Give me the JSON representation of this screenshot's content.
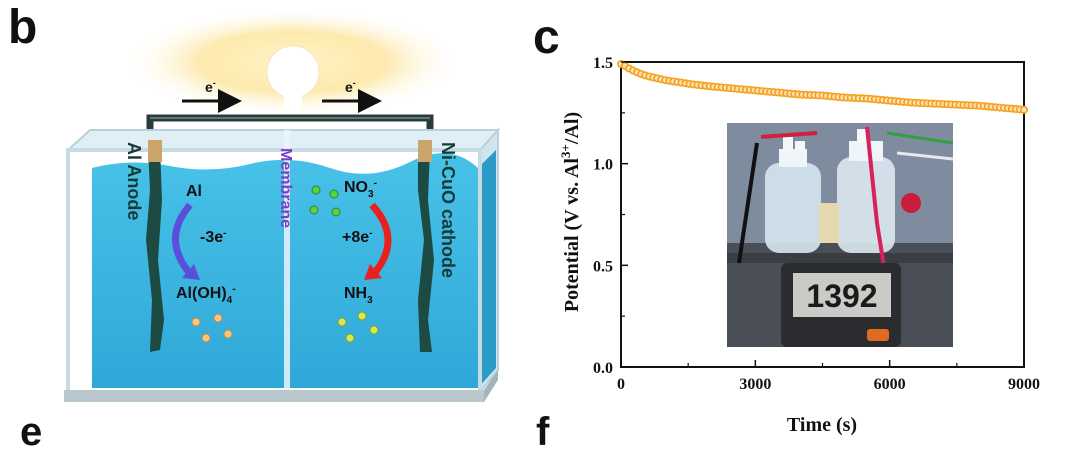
{
  "panel_b": {
    "letter": "b",
    "electron_left": "e",
    "electron_right": "e",
    "electron_sup": "-",
    "anode_label": "Al Anode",
    "membrane_label": "Membrane",
    "cathode_label": "Ni-CuO cathode",
    "anode_reactant": "Al",
    "anode_electrons": "-3e",
    "anode_electrons_sup": "-",
    "anode_product_main": "Al(OH)",
    "anode_product_sub": "4",
    "anode_product_sup": "-",
    "cathode_reactant_main": "NO",
    "cathode_reactant_sub": "3",
    "cathode_reactant_sup": "-",
    "cathode_electrons": "+8e",
    "cathode_electrons_sup": "-",
    "cathode_product_main": "NH",
    "cathode_product_sub": "3"
  },
  "panel_c": {
    "letter": "c"
  },
  "inset": {
    "meter_reading": "1392"
  },
  "partial_letters": {
    "bottom_left": "e",
    "bottom_right": "f"
  },
  "colors": {
    "water": "#3fb8e0",
    "series": "#f5a020",
    "arrow_red": "#e82020",
    "arrow_blue": "#5a4fd8",
    "membrane_text": "#7b3fc4"
  },
  "chart_data": {
    "type": "scatter",
    "xlabel": "Time (s)",
    "ylabel_main": "Potential (V vs. Al",
    "ylabel_sup": "3+",
    "ylabel_end": "/Al)",
    "xlim": [
      0,
      9000
    ],
    "ylim": [
      0.0,
      1.5
    ],
    "x_ticks": [
      0,
      3000,
      6000,
      9000
    ],
    "x_tick_labels": [
      "0",
      "3000",
      "6000",
      "9000"
    ],
    "y_ticks": [
      0.0,
      0.5,
      1.0,
      1.5
    ],
    "y_tick_labels": [
      "0.0",
      "0.5",
      "1.0",
      "1.5"
    ],
    "grid": false,
    "series": [
      {
        "x": [
          0,
          100,
          200,
          400,
          600,
          800,
          1000,
          1300,
          1600,
          2000,
          2500,
          3000,
          3500,
          4000,
          4500,
          5000,
          5500,
          6000,
          6500,
          7000,
          7500,
          8000,
          8500,
          9000
        ],
        "y": [
          1.49,
          1.48,
          1.465,
          1.445,
          1.43,
          1.42,
          1.41,
          1.4,
          1.39,
          1.38,
          1.37,
          1.36,
          1.35,
          1.34,
          1.335,
          1.325,
          1.32,
          1.31,
          1.3,
          1.295,
          1.29,
          1.285,
          1.275,
          1.265
        ]
      }
    ]
  }
}
